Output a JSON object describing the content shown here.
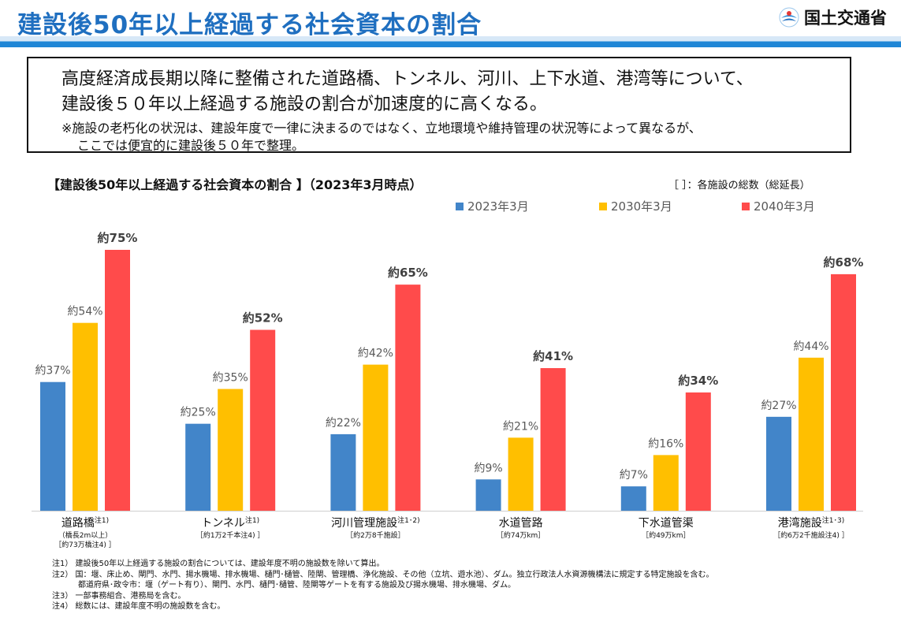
{
  "header": {
    "title": "建設後50年以上経過する社会資本の割合",
    "logo_text": "国土交通省"
  },
  "summary": {
    "line1": "高度経済成長期以降に整備された道路橋、トンネル、河川、上下水道、港湾等について、",
    "line2": "建設後５０年以上経過する施設の割合が加速度的に高くなる。",
    "note1": "※施設の老朽化の状況は、建設年度で一律に決まるのではなく、立地環境や維持管理の状況等によって異なるが、",
    "note2": "ここでは便宜的に建設後５０年で整理。"
  },
  "chart_note": "［ ］：各施設の総数（総延長）",
  "chart_data": {
    "type": "bar",
    "title": "【建設後50年以上経過する社会資本の割合 】（2023年3月時点）",
    "ylim": [
      0,
      75
    ],
    "categories": [
      "道路橋",
      "トンネル",
      "河川管理施設",
      "水道管路",
      "下水道管渠",
      "港湾施設"
    ],
    "category_notes": [
      "注1)",
      "注1)",
      "注1･2)",
      "",
      "",
      "注1･3)"
    ],
    "category_sublabels": [
      [
        "（橋長2m以上）",
        "［約73万橋注4) ］"
      ],
      [
        "［約1万2千本注4) ］"
      ],
      [
        "［約2万8千施設］"
      ],
      [
        "［約74万km］"
      ],
      [
        "［約49万km］"
      ],
      [
        "［約6万2千施設注4) ］"
      ]
    ],
    "series": [
      {
        "name": "2023年3月",
        "color": "#4285c9",
        "values": [
          37,
          25,
          22,
          9,
          7,
          27
        ],
        "labels": [
          "約37%",
          "約25%",
          "約22%",
          "約9%",
          "約7%",
          "約27%"
        ]
      },
      {
        "name": "2030年3月",
        "color": "#ffbf00",
        "values": [
          54,
          35,
          42,
          21,
          16,
          44
        ],
        "labels": [
          "約54%",
          "約35%",
          "約42%",
          "約21%",
          "約16%",
          "約44%"
        ]
      },
      {
        "name": "2040年3月",
        "color": "#ff4b4b",
        "values": [
          75,
          52,
          65,
          41,
          34,
          68
        ],
        "labels": [
          "約75%",
          "約52%",
          "約65%",
          "約41%",
          "約34%",
          "約68%"
        ]
      }
    ]
  },
  "footnotes": [
    "注1） 建設後50年以上経過する施設の割合については、建設年度不明の施設数を除いて算出。",
    "注2） 国：堰、床止め、閘門、水門、揚水機場、排水機場、樋門･樋管、陸閘、管理橋、浄化施設、その他（立坑、遊水池）、ダム。独立行政法人水資源機構法に規定する特定施設を含む。",
    "都道府県･政令市：堰（ゲート有り）、閘門、水門、樋門･樋管、陸閘等ゲートを有する施設及び揚水機場、排水機場、ダム。",
    "注3） 一部事務組合、港務局を含む。",
    "注4） 総数には、建設年度不明の施設数を含む。"
  ]
}
